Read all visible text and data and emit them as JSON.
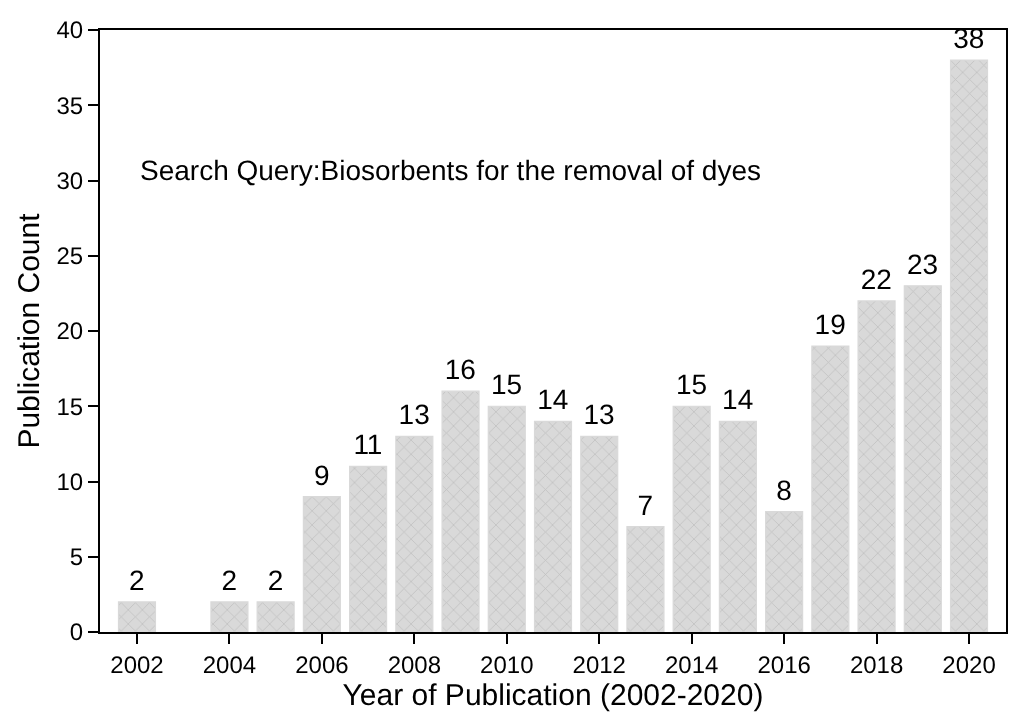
{
  "chart_data": {
    "type": "bar",
    "xlabel": "Year of Publication (2002-2020)",
    "ylabel": "Publication Count",
    "x": [
      2002,
      2003,
      2004,
      2005,
      2006,
      2007,
      2008,
      2009,
      2010,
      2011,
      2012,
      2013,
      2014,
      2015,
      2016,
      2017,
      2018,
      2019,
      2020
    ],
    "values": [
      2,
      null,
      2,
      2,
      9,
      11,
      13,
      16,
      15,
      14,
      13,
      7,
      15,
      14,
      8,
      19,
      22,
      23,
      38
    ],
    "color": "#d9d9d9",
    "data_labels": true,
    "xlim": [
      2001.2,
      2020.8
    ],
    "xticks": [
      2002,
      2004,
      2006,
      2008,
      2010,
      2012,
      2014,
      2016,
      2018,
      2020
    ],
    "ylim": [
      0,
      40
    ],
    "yticks": [
      0,
      5,
      10,
      15,
      20,
      25,
      30,
      35,
      40
    ],
    "annotations": [
      "Search Query:Biosorbents for the removal of dyes"
    ]
  }
}
